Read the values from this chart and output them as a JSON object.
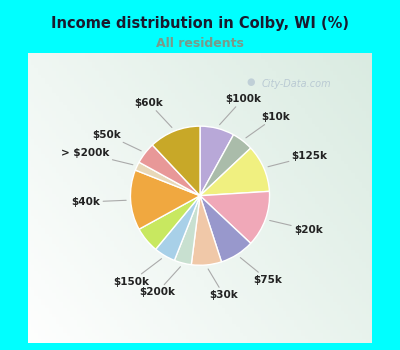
{
  "title": "Income distribution in Colby, WI (%)",
  "subtitle": "All residents",
  "title_color": "#1a1a2e",
  "subtitle_color": "#7a9a8a",
  "background_top": "#00ffff",
  "background_chart_color": "#e0f0e8",
  "watermark": "City-Data.com",
  "labels": [
    "$100k",
    "$10k",
    "$125k",
    "$20k",
    "$75k",
    "$30k",
    "$200k",
    "$150k",
    "$150k_b",
    "$40k",
    "> $200k",
    "$50k",
    "$60k"
  ],
  "display_labels": [
    "$100k",
    "$10k",
    "$125k",
    "$20k",
    "$75k",
    "$30k",
    "$200k",
    "$150k",
    null,
    "$40k",
    "> $200k",
    "$50k",
    "$60k"
  ],
  "values": [
    8,
    5,
    11,
    13,
    8,
    7,
    4,
    5,
    6,
    14,
    2,
    5,
    12
  ],
  "colors": [
    "#b8a8d8",
    "#aabcaa",
    "#f0f080",
    "#f0a8b8",
    "#9898cc",
    "#f0c8a8",
    "#c8e0d0",
    "#a8d0e8",
    "#c8e860",
    "#f0a840",
    "#e8d8b8",
    "#e89898",
    "#c8a828"
  ],
  "startangle": 90,
  "label_fontsize": 7.5,
  "label_color": "#222222",
  "edge_color": "#ffffff",
  "edge_width": 1.0
}
